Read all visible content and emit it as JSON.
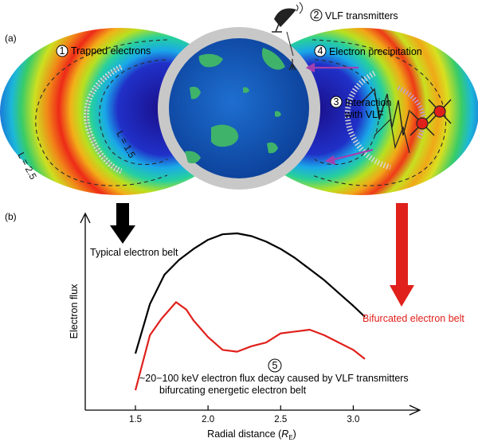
{
  "panel_a": "(a)",
  "panel_b": "(b)",
  "markers": [
    "1",
    "2",
    "3",
    "4",
    "5"
  ],
  "labels": {
    "trapped": "Trapped electrons",
    "vlf_tx": "VLF transmitters",
    "interaction_l1": "Interaction",
    "interaction_l2": "with VLF",
    "precipitation": "Electron precipitation",
    "l25": "L = 2.5",
    "l15": "L = 1.5"
  },
  "colors": {
    "typical": "#000000",
    "bifurcated": "#e0201b",
    "arrow_purple": "#a040b0"
  },
  "chart_data": {
    "type": "line",
    "xlabel_main": "Radial distance (",
    "xlabel_var": "R",
    "xlabel_sub": "E",
    "xlabel_close": ")",
    "ylabel": "Electron flux",
    "xticks": [
      "1.5",
      "2.0",
      "2.5",
      "3.0"
    ],
    "x_range": [
      1.2,
      3.25
    ],
    "y_units": "arbitrary",
    "series": [
      {
        "name": "Typical electron belt",
        "color": "#000000",
        "x": [
          1.5,
          1.6,
          1.7,
          1.8,
          1.9,
          2.0,
          2.1,
          2.2,
          2.3,
          2.4,
          2.5,
          2.6,
          2.7,
          2.8,
          2.9,
          3.0,
          3.08
        ],
        "y": [
          0.25,
          0.52,
          0.68,
          0.76,
          0.82,
          0.87,
          0.9,
          0.905,
          0.89,
          0.86,
          0.82,
          0.77,
          0.71,
          0.65,
          0.58,
          0.51,
          0.45
        ]
      },
      {
        "name": "Bifurcated electron belt",
        "color": "#e0201b",
        "x": [
          1.5,
          1.6,
          1.68,
          1.78,
          1.85,
          1.9,
          2.0,
          2.1,
          2.2,
          2.3,
          2.4,
          2.5,
          2.6,
          2.7,
          2.8,
          2.9,
          3.0,
          3.08
        ],
        "y": [
          0.05,
          0.35,
          0.44,
          0.53,
          0.49,
          0.43,
          0.34,
          0.27,
          0.26,
          0.29,
          0.31,
          0.36,
          0.37,
          0.38,
          0.35,
          0.31,
          0.27,
          0.22
        ]
      }
    ],
    "annotation_l1": "~20−100 keV electron flux decay caused by VLF transmitters",
    "annotation_l2": "bifurcating energetic electron belt"
  }
}
